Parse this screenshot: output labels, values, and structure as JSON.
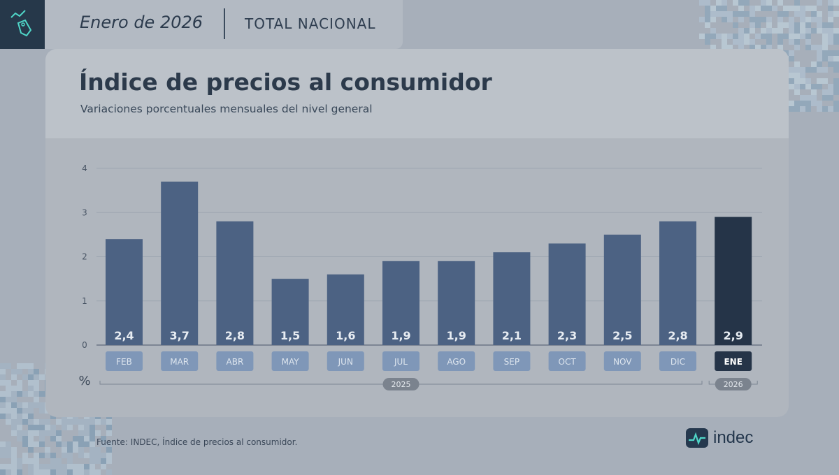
{
  "header": {
    "period": "Enero de 2026",
    "scope": "TOTAL NACIONAL"
  },
  "title": "Índice de precios al consumidor",
  "subtitle": "Variaciones porcentuales mensuales del nivel general",
  "chart_data": {
    "type": "bar",
    "categories": [
      "FEB",
      "MAR",
      "ABR",
      "MAY",
      "JUN",
      "JUL",
      "AGO",
      "SEP",
      "OCT",
      "NOV",
      "DIC",
      "ENE"
    ],
    "values": [
      2.4,
      3.7,
      2.8,
      1.5,
      1.6,
      1.9,
      1.9,
      2.1,
      2.3,
      2.5,
      2.8,
      2.9
    ],
    "value_labels": [
      "2,4",
      "3,7",
      "2,8",
      "1,5",
      "1,6",
      "1,9",
      "1,9",
      "2,1",
      "2,3",
      "2,5",
      "2,8",
      "2,9"
    ],
    "highlight_index": 11,
    "ylim": [
      0,
      4
    ],
    "yticks": [
      "0",
      "1",
      "2",
      "3",
      "4"
    ],
    "ylabel": "%",
    "year_groups": [
      {
        "label": "2025",
        "from": 0,
        "to": 10
      },
      {
        "label": "2026",
        "from": 11,
        "to": 11
      }
    ],
    "grid": true,
    "colors": {
      "bar": "#4c6283",
      "highlight": "#253448",
      "month_pill": "#7f97b8",
      "month_pill_highlight": "#253448"
    }
  },
  "footer": {
    "source": "Fuente: INDEC, Índice de precios al consumidor.",
    "brand": "indec"
  }
}
